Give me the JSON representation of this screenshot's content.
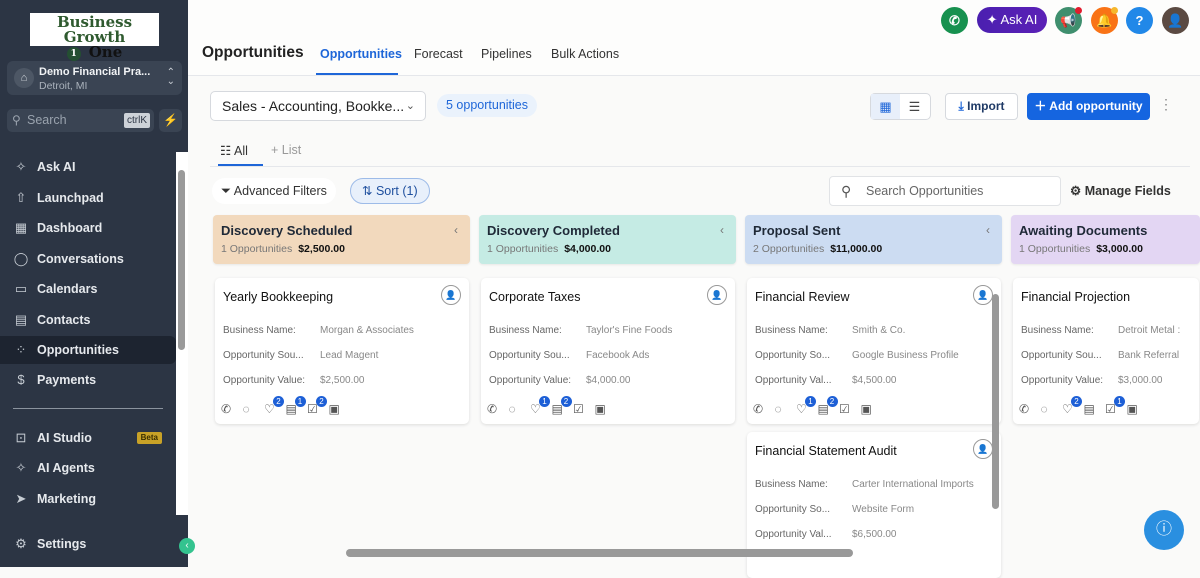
{
  "app": {
    "logo_line1": "Business Growth",
    "logo_num": "1",
    "logo_line2": "One"
  },
  "location": {
    "name": "Demo Financial Pra...",
    "city": "Detroit, MI"
  },
  "search": {
    "placeholder": "Search",
    "shortcut": "ctrlK"
  },
  "sidebar": {
    "items": [
      {
        "label": "Ask AI",
        "icon": "sparkle-icon"
      },
      {
        "label": "Launchpad",
        "icon": "rocket-icon"
      },
      {
        "label": "Dashboard",
        "icon": "grid-icon"
      },
      {
        "label": "Conversations",
        "icon": "chat-icon"
      },
      {
        "label": "Calendars",
        "icon": "calendar-icon"
      },
      {
        "label": "Contacts",
        "icon": "contacts-icon"
      },
      {
        "label": "Opportunities",
        "icon": "opportunities-icon",
        "active": true
      },
      {
        "label": "Payments",
        "icon": "payments-icon"
      },
      {
        "label": "AI Studio",
        "icon": "ai-studio-icon",
        "badge": "Beta"
      },
      {
        "label": "AI Agents",
        "icon": "sparkle-icon"
      },
      {
        "label": "Marketing",
        "icon": "send-icon"
      }
    ],
    "settings": "Settings"
  },
  "header": {
    "title": "Opportunities",
    "tabs": [
      "Opportunities",
      "Forecast",
      "Pipelines",
      "Bulk Actions"
    ],
    "active_tab": "Opportunities",
    "ask_ai": "Ask AI",
    "help": "?"
  },
  "toolbar": {
    "pipeline": "Sales - Accounting, Bookke...",
    "count": "5 opportunities",
    "import": "Import",
    "add": "Add opportunity"
  },
  "views": {
    "all": "All",
    "list": "List"
  },
  "filters": {
    "advanced": "Advanced Filters",
    "sort": "Sort (1)",
    "search_placeholder": "Search Opportunities",
    "manage": "Manage Fields"
  },
  "colors": {
    "accent": "#1565e0",
    "sidebar": "#2c3544"
  },
  "columns": [
    {
      "title": "Discovery Scheduled",
      "count": "1 Opportunities",
      "total": "$2,500.00",
      "color": "#f2d9bd",
      "cards": [
        {
          "title": "Yearly Bookkeeping",
          "fields": [
            [
              "Business Name:",
              "Morgan & Associates"
            ],
            [
              "Opportunity Sou...",
              "Lead Magent"
            ],
            [
              "Opportunity Value:",
              "$2,500.00"
            ]
          ],
          "badges": [
            "",
            "",
            "2",
            "1",
            "2",
            ""
          ]
        }
      ]
    },
    {
      "title": "Discovery Completed",
      "count": "1 Opportunities",
      "total": "$4,000.00",
      "color": "#c5ebe4",
      "cards": [
        {
          "title": "Corporate Taxes",
          "fields": [
            [
              "Business Name:",
              "Taylor's Fine Foods"
            ],
            [
              "Opportunity Sou...",
              "Facebook Ads"
            ],
            [
              "Opportunity Value:",
              "$4,000.00"
            ]
          ],
          "badges": [
            "",
            "",
            "1",
            "2",
            "",
            ""
          ]
        }
      ]
    },
    {
      "title": "Proposal Sent",
      "count": "2 Opportunities",
      "total": "$11,000.00",
      "color": "#ccdcf2",
      "cards": [
        {
          "title": "Financial Review",
          "fields": [
            [
              "Business Name:",
              "Smith & Co."
            ],
            [
              "Opportunity So...",
              "Google Business Profile"
            ],
            [
              "Opportunity Val...",
              "$4,500.00"
            ]
          ],
          "badges": [
            "",
            "",
            "1",
            "2",
            "",
            ""
          ]
        },
        {
          "title": "Financial Statement Audit",
          "fields": [
            [
              "Business Name:",
              "Carter International Imports"
            ],
            [
              "Opportunity So...",
              "Website Form"
            ],
            [
              "Opportunity Val...",
              "$6,500.00"
            ]
          ],
          "badges": []
        }
      ]
    },
    {
      "title": "Awaiting Documents",
      "count": "1 Opportunities",
      "total": "$3,000.00",
      "color": "#e3d6f3",
      "cards": [
        {
          "title": "Financial Projection",
          "fields": [
            [
              "Business Name:",
              "Detroit Metal :"
            ],
            [
              "Opportunity Sou...",
              "Bank Referral"
            ],
            [
              "Opportunity Value:",
              "$3,000.00"
            ]
          ],
          "badges": [
            "",
            "",
            "2",
            "",
            "1",
            ""
          ]
        }
      ]
    }
  ]
}
